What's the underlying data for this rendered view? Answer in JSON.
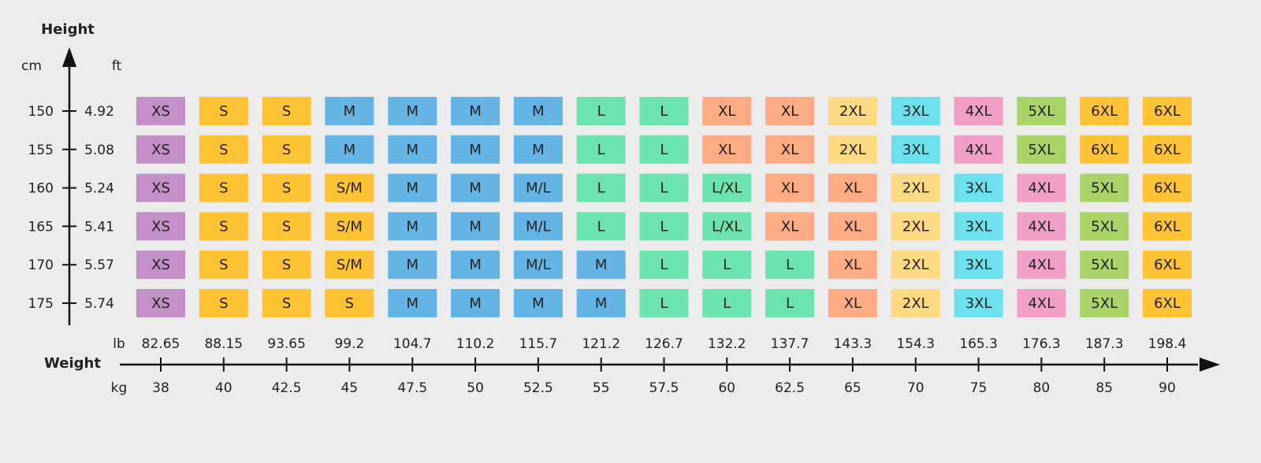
{
  "chart_data": {
    "type": "heatmap",
    "y_axis_title": "Height",
    "x_axis_title": "Weight",
    "y_unit_left": "cm",
    "y_unit_right": "ft",
    "x_unit_top": "lb",
    "x_unit_bottom": "kg",
    "heights_cm": [
      "150",
      "155",
      "160",
      "165",
      "170",
      "175"
    ],
    "heights_ft": [
      "4.92",
      "5.08",
      "5.24",
      "5.41",
      "5.57",
      "5.74"
    ],
    "weights_lb": [
      "82.65",
      "88.15",
      "93.65",
      "99.2",
      "104.7",
      "110.2",
      "115.7",
      "121.2",
      "126.7",
      "132.2",
      "137.7",
      "143.3",
      "154.3",
      "165.3",
      "176.3",
      "187.3",
      "198.4"
    ],
    "weights_kg": [
      "38",
      "40",
      "42.5",
      "45",
      "47.5",
      "50",
      "52.5",
      "55",
      "57.5",
      "60",
      "62.5",
      "65",
      "70",
      "75",
      "80",
      "85",
      "90"
    ],
    "sizes": [
      [
        "XS",
        "S",
        "S",
        "M",
        "M",
        "M",
        "M",
        "L",
        "L",
        "XL",
        "XL",
        "2XL",
        "3XL",
        "4XL",
        "5XL",
        "6XL",
        "6XL"
      ],
      [
        "XS",
        "S",
        "S",
        "M",
        "M",
        "M",
        "M",
        "L",
        "L",
        "XL",
        "XL",
        "2XL",
        "3XL",
        "4XL",
        "5XL",
        "6XL",
        "6XL"
      ],
      [
        "XS",
        "S",
        "S",
        "S/M",
        "M",
        "M",
        "M/L",
        "L",
        "L",
        "L/XL",
        "XL",
        "XL",
        "2XL",
        "3XL",
        "4XL",
        "5XL",
        "6XL"
      ],
      [
        "XS",
        "S",
        "S",
        "S/M",
        "M",
        "M",
        "M/L",
        "L",
        "L",
        "L/XL",
        "XL",
        "XL",
        "2XL",
        "3XL",
        "4XL",
        "5XL",
        "6XL"
      ],
      [
        "XS",
        "S",
        "S",
        "S/M",
        "M",
        "M",
        "M/L",
        "M",
        "L",
        "L",
        "L",
        "XL",
        "2XL",
        "3XL",
        "4XL",
        "5XL",
        "6XL"
      ],
      [
        "XS",
        "S",
        "S",
        "S",
        "M",
        "M",
        "M",
        "M",
        "L",
        "L",
        "L",
        "XL",
        "2XL",
        "3XL",
        "4XL",
        "5XL",
        "6XL"
      ]
    ],
    "size_colors": {
      "XS": "#c38fc7",
      "S": "#fec235",
      "S/M": "#fec235",
      "M": "#64b4e6",
      "M/L": "#64b4e6",
      "L": "#6de3b0",
      "L/XL": "#6de3b0",
      "XL": "#fdab85",
      "2XL": "#fcd983",
      "3XL": "#6ce0ec",
      "4XL": "#f19fc7",
      "5XL": "#a9d468",
      "6XL": "#fec235"
    },
    "axis_color": "#111111"
  }
}
